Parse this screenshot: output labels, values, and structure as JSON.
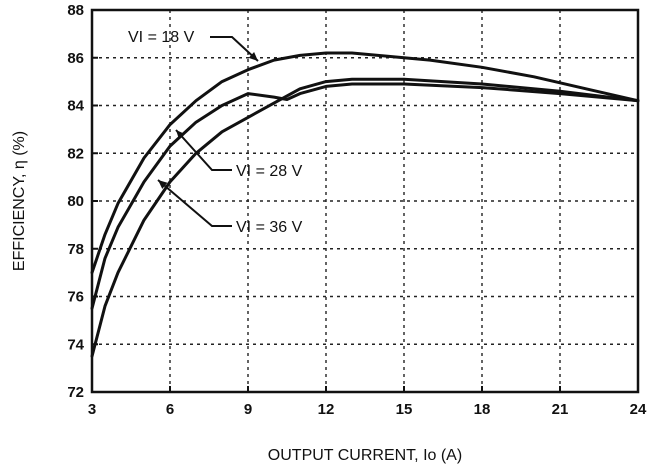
{
  "chart_data": {
    "type": "line",
    "xlabel": "OUTPUT CURRENT, Io (A)",
    "ylabel": "EFFICIENCY, η (%)",
    "xlim": [
      3,
      24
    ],
    "ylim": [
      72,
      88
    ],
    "x_ticks": [
      3,
      6,
      9,
      12,
      15,
      18,
      21,
      24
    ],
    "y_ticks": [
      72,
      74,
      76,
      78,
      80,
      82,
      84,
      86,
      88
    ],
    "grid": true,
    "series": [
      {
        "name": "VI = 18 V",
        "x": [
          3,
          3.5,
          4,
          5,
          6,
          7,
          8,
          9,
          10,
          11,
          12,
          13,
          14,
          15,
          16,
          18,
          20,
          22,
          24
        ],
        "y": [
          77.0,
          78.6,
          79.9,
          81.8,
          83.2,
          84.2,
          85.0,
          85.5,
          85.9,
          86.1,
          86.2,
          86.2,
          86.1,
          86.0,
          85.9,
          85.6,
          85.2,
          84.7,
          84.2
        ]
      },
      {
        "name": "VI = 28 V",
        "x": [
          3,
          3.5,
          4,
          5,
          6,
          7,
          8,
          9,
          10,
          10.5,
          11,
          12,
          13,
          14,
          15,
          18,
          21,
          24
        ],
        "y": [
          75.5,
          77.6,
          78.9,
          80.8,
          82.3,
          83.3,
          84.0,
          84.5,
          84.35,
          84.25,
          84.5,
          84.8,
          84.9,
          84.9,
          84.9,
          84.75,
          84.5,
          84.2
        ]
      },
      {
        "name": "VI = 36 V",
        "x": [
          3,
          3.5,
          4,
          5,
          6,
          7,
          8,
          9,
          10,
          11,
          12,
          13,
          15,
          18,
          21,
          24
        ],
        "y": [
          73.5,
          75.6,
          77.0,
          79.2,
          80.8,
          82.0,
          82.9,
          83.5,
          84.1,
          84.7,
          85.0,
          85.1,
          85.1,
          84.9,
          84.6,
          84.2
        ]
      }
    ],
    "annotations": [
      {
        "text": "VI = 18 V",
        "series": 0
      },
      {
        "text": "VI = 28 V",
        "series": 1
      },
      {
        "text": "VI = 36 V",
        "series": 2
      }
    ]
  }
}
